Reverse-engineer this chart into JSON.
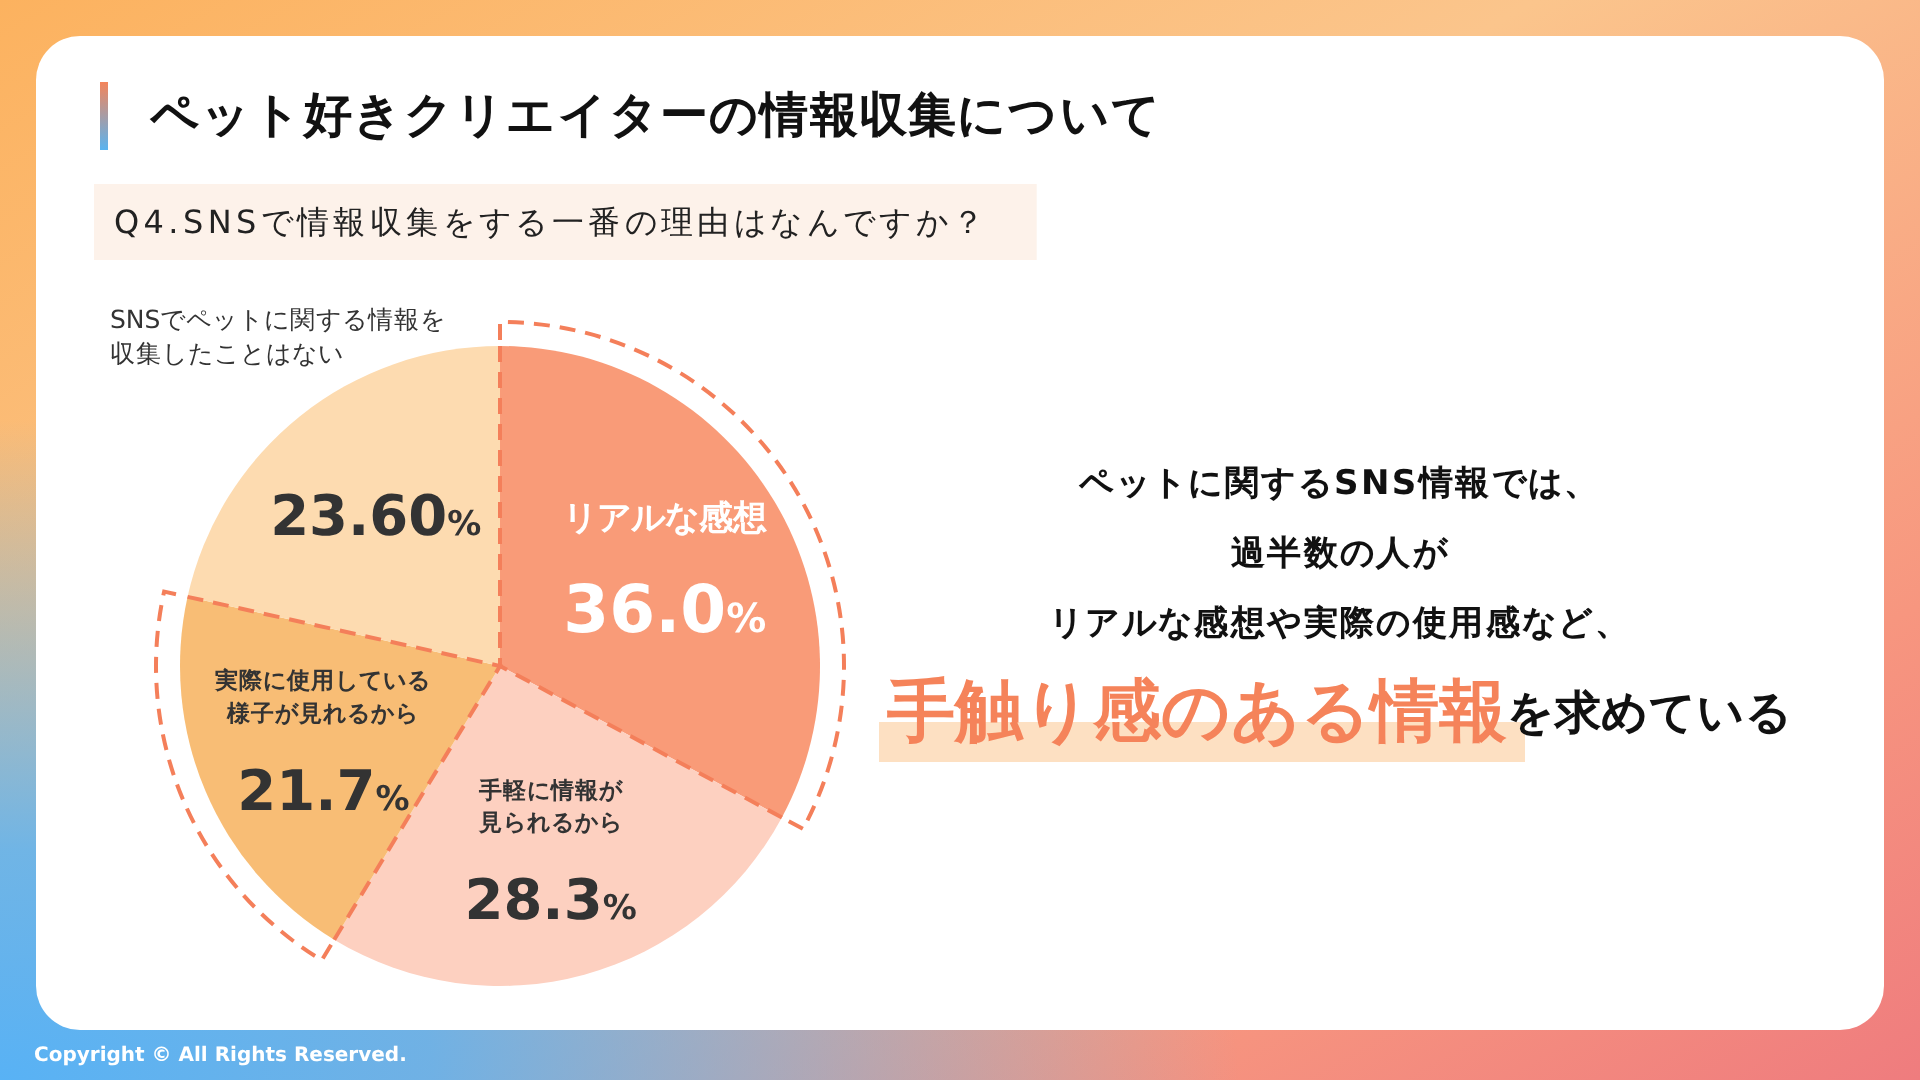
{
  "chart_data": {
    "type": "pie",
    "title": "ペット好きクリエイターの情報収集について",
    "subtitle": "Q4.SNSで情報収集をする一番の理由はなんですか？",
    "categories": [
      "リアルな感想",
      "手軽に情報が見られるから",
      "実際に使用している様子が見れるから",
      "SNSでペットに関する情報を収集したことはない"
    ],
    "values": [
      36.0,
      28.3,
      21.7,
      23.6
    ],
    "value_labels": [
      "36.0%",
      "28.3%",
      "21.7%",
      "23.60%"
    ],
    "colors": [
      "#f99b78",
      "#fdd0c0",
      "#f8bd75",
      "#fddbb0"
    ],
    "annotations": [
      "ペットに関するSNS情報では、",
      "過半数の人が",
      "リアルな感想や実際の使用感など、",
      "**手触り感のある情報**を求めている",
      "Copyright © All Rights Reserved."
    ]
  }
}
